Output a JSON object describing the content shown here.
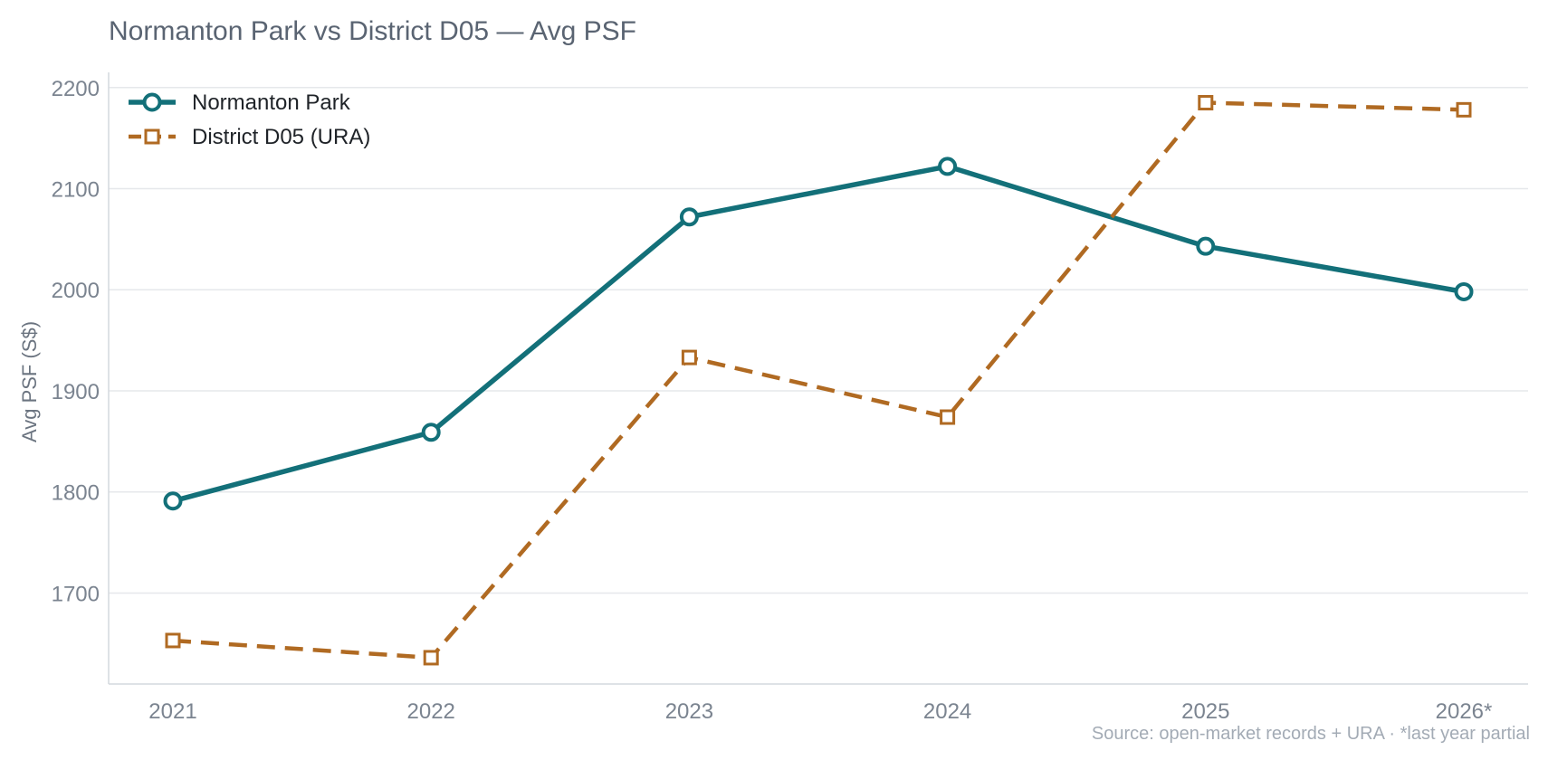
{
  "chart_data": {
    "type": "line",
    "title": "Normanton Park vs District D05 — Avg PSF",
    "xlabel": "",
    "ylabel": "Avg PSF (S$)",
    "categories": [
      "2021",
      "2022",
      "2023",
      "2024",
      "2025",
      "2026*"
    ],
    "yticks": [
      1700,
      1800,
      1900,
      2000,
      2100,
      2200
    ],
    "ylim": [
      1610,
      2215
    ],
    "grid": "horizontal",
    "legend_position": "top-left",
    "series": [
      {
        "name": "Normanton Park",
        "values": [
          1791,
          1859,
          2072,
          2122,
          2043,
          1998
        ],
        "color": "#137079",
        "marker": "circle",
        "line_style": "solid"
      },
      {
        "name": "District D05 (URA)",
        "values": [
          1653,
          1636,
          1933,
          1874,
          2185,
          2178
        ],
        "color": "#b06a22",
        "marker": "square",
        "line_style": "dashed"
      }
    ],
    "footnote": "Source: open-market records + URA · *last year partial"
  }
}
